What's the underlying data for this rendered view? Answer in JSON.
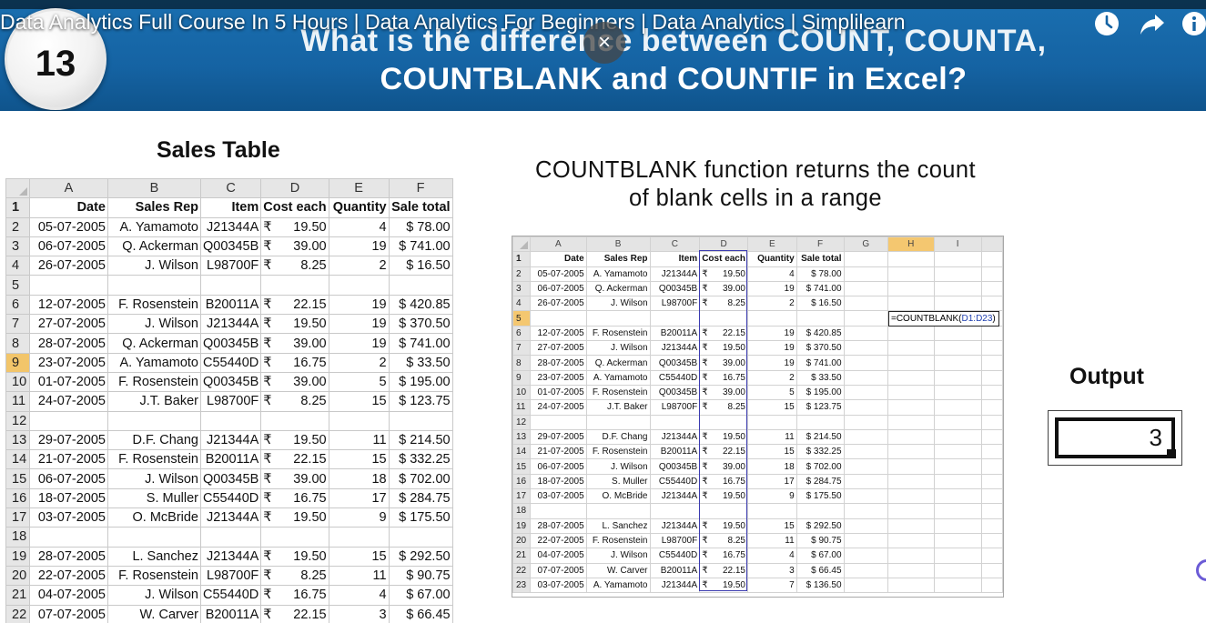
{
  "video": {
    "title": "Data Analytics Full Course In 5 Hours | Data Analytics For Beginners | Data Analytics | Simplilearn",
    "close_symbol": "×",
    "icons": [
      "clock-icon",
      "share-icon",
      "info-icon"
    ]
  },
  "banner": {
    "number": "13",
    "headline_line1": "What is the difference between COUNT, COUNTA,",
    "headline_line2": "COUNTBLANK  and COUNTIF in Excel?"
  },
  "sales_table": {
    "title": "Sales Table",
    "columns": [
      "A",
      "B",
      "C",
      "D",
      "E",
      "F"
    ],
    "headers": [
      "Date",
      "Sales Rep",
      "Item",
      "Cost each",
      "Quantity",
      "Sale total"
    ],
    "currency_symbol": "₹",
    "rows": [
      [
        "05-07-2005",
        "A. Yamamoto",
        "J21344A",
        "19.50",
        "4",
        "$  78.00"
      ],
      [
        "06-07-2005",
        "Q. Ackerman",
        "Q00345B",
        "39.00",
        "19",
        "$ 741.00"
      ],
      [
        "26-07-2005",
        "J. Wilson",
        "L98700F",
        "8.25",
        "2",
        "$  16.50"
      ],
      [
        "",
        "",
        "",
        "",
        "",
        ""
      ],
      [
        "12-07-2005",
        "F. Rosenstein",
        "B20011A",
        "22.15",
        "19",
        "$ 420.85"
      ],
      [
        "27-07-2005",
        "J. Wilson",
        "J21344A",
        "19.50",
        "19",
        "$ 370.50"
      ],
      [
        "28-07-2005",
        "Q. Ackerman",
        "Q00345B",
        "39.00",
        "19",
        "$ 741.00"
      ],
      [
        "23-07-2005",
        "A. Yamamoto",
        "C55440D",
        "16.75",
        "2",
        "$  33.50"
      ],
      [
        "01-07-2005",
        "F. Rosenstein",
        "Q00345B",
        "39.00",
        "5",
        "$ 195.00"
      ],
      [
        "24-07-2005",
        "J.T. Baker",
        "L98700F",
        "8.25",
        "15",
        "$ 123.75"
      ],
      [
        "",
        "",
        "",
        "",
        "",
        ""
      ],
      [
        "29-07-2005",
        "D.F. Chang",
        "J21344A",
        "19.50",
        "11",
        "$ 214.50"
      ],
      [
        "21-07-2005",
        "F. Rosenstein",
        "B20011A",
        "22.15",
        "15",
        "$ 332.25"
      ],
      [
        "06-07-2005",
        "J. Wilson",
        "Q00345B",
        "39.00",
        "18",
        "$ 702.00"
      ],
      [
        "18-07-2005",
        "S. Muller",
        "C55440D",
        "16.75",
        "17",
        "$ 284.75"
      ],
      [
        "03-07-2005",
        "O. McBride",
        "J21344A",
        "19.50",
        "9",
        "$ 175.50"
      ],
      [
        "",
        "",
        "",
        "",
        "",
        ""
      ],
      [
        "28-07-2005",
        "L. Sanchez",
        "J21344A",
        "19.50",
        "15",
        "$ 292.50"
      ],
      [
        "22-07-2005",
        "F. Rosenstein",
        "L98700F",
        "8.25",
        "11",
        "$  90.75"
      ],
      [
        "04-07-2005",
        "J. Wilson",
        "C55440D",
        "16.75",
        "4",
        "$  67.00"
      ],
      [
        "07-07-2005",
        "W. Carver",
        "B20011A",
        "22.15",
        "3",
        "$  66.45"
      ]
    ]
  },
  "description": {
    "line1": "COUNTBLANK function returns the count",
    "line2": "of blank cells in a range"
  },
  "example_sheet": {
    "columns": [
      "A",
      "B",
      "C",
      "D",
      "E",
      "F",
      "G",
      "H",
      "I"
    ],
    "rows_extra": [
      [
        "03-07-2005",
        "A. Yamamoto",
        "J21344A",
        "19.50",
        "7",
        "$ 136.50"
      ]
    ],
    "formula_prefix": "=COUNTBLANK(",
    "formula_ref": "D1:D23",
    "formula_suffix": ")"
  },
  "output": {
    "label": "Output",
    "value": "3"
  }
}
